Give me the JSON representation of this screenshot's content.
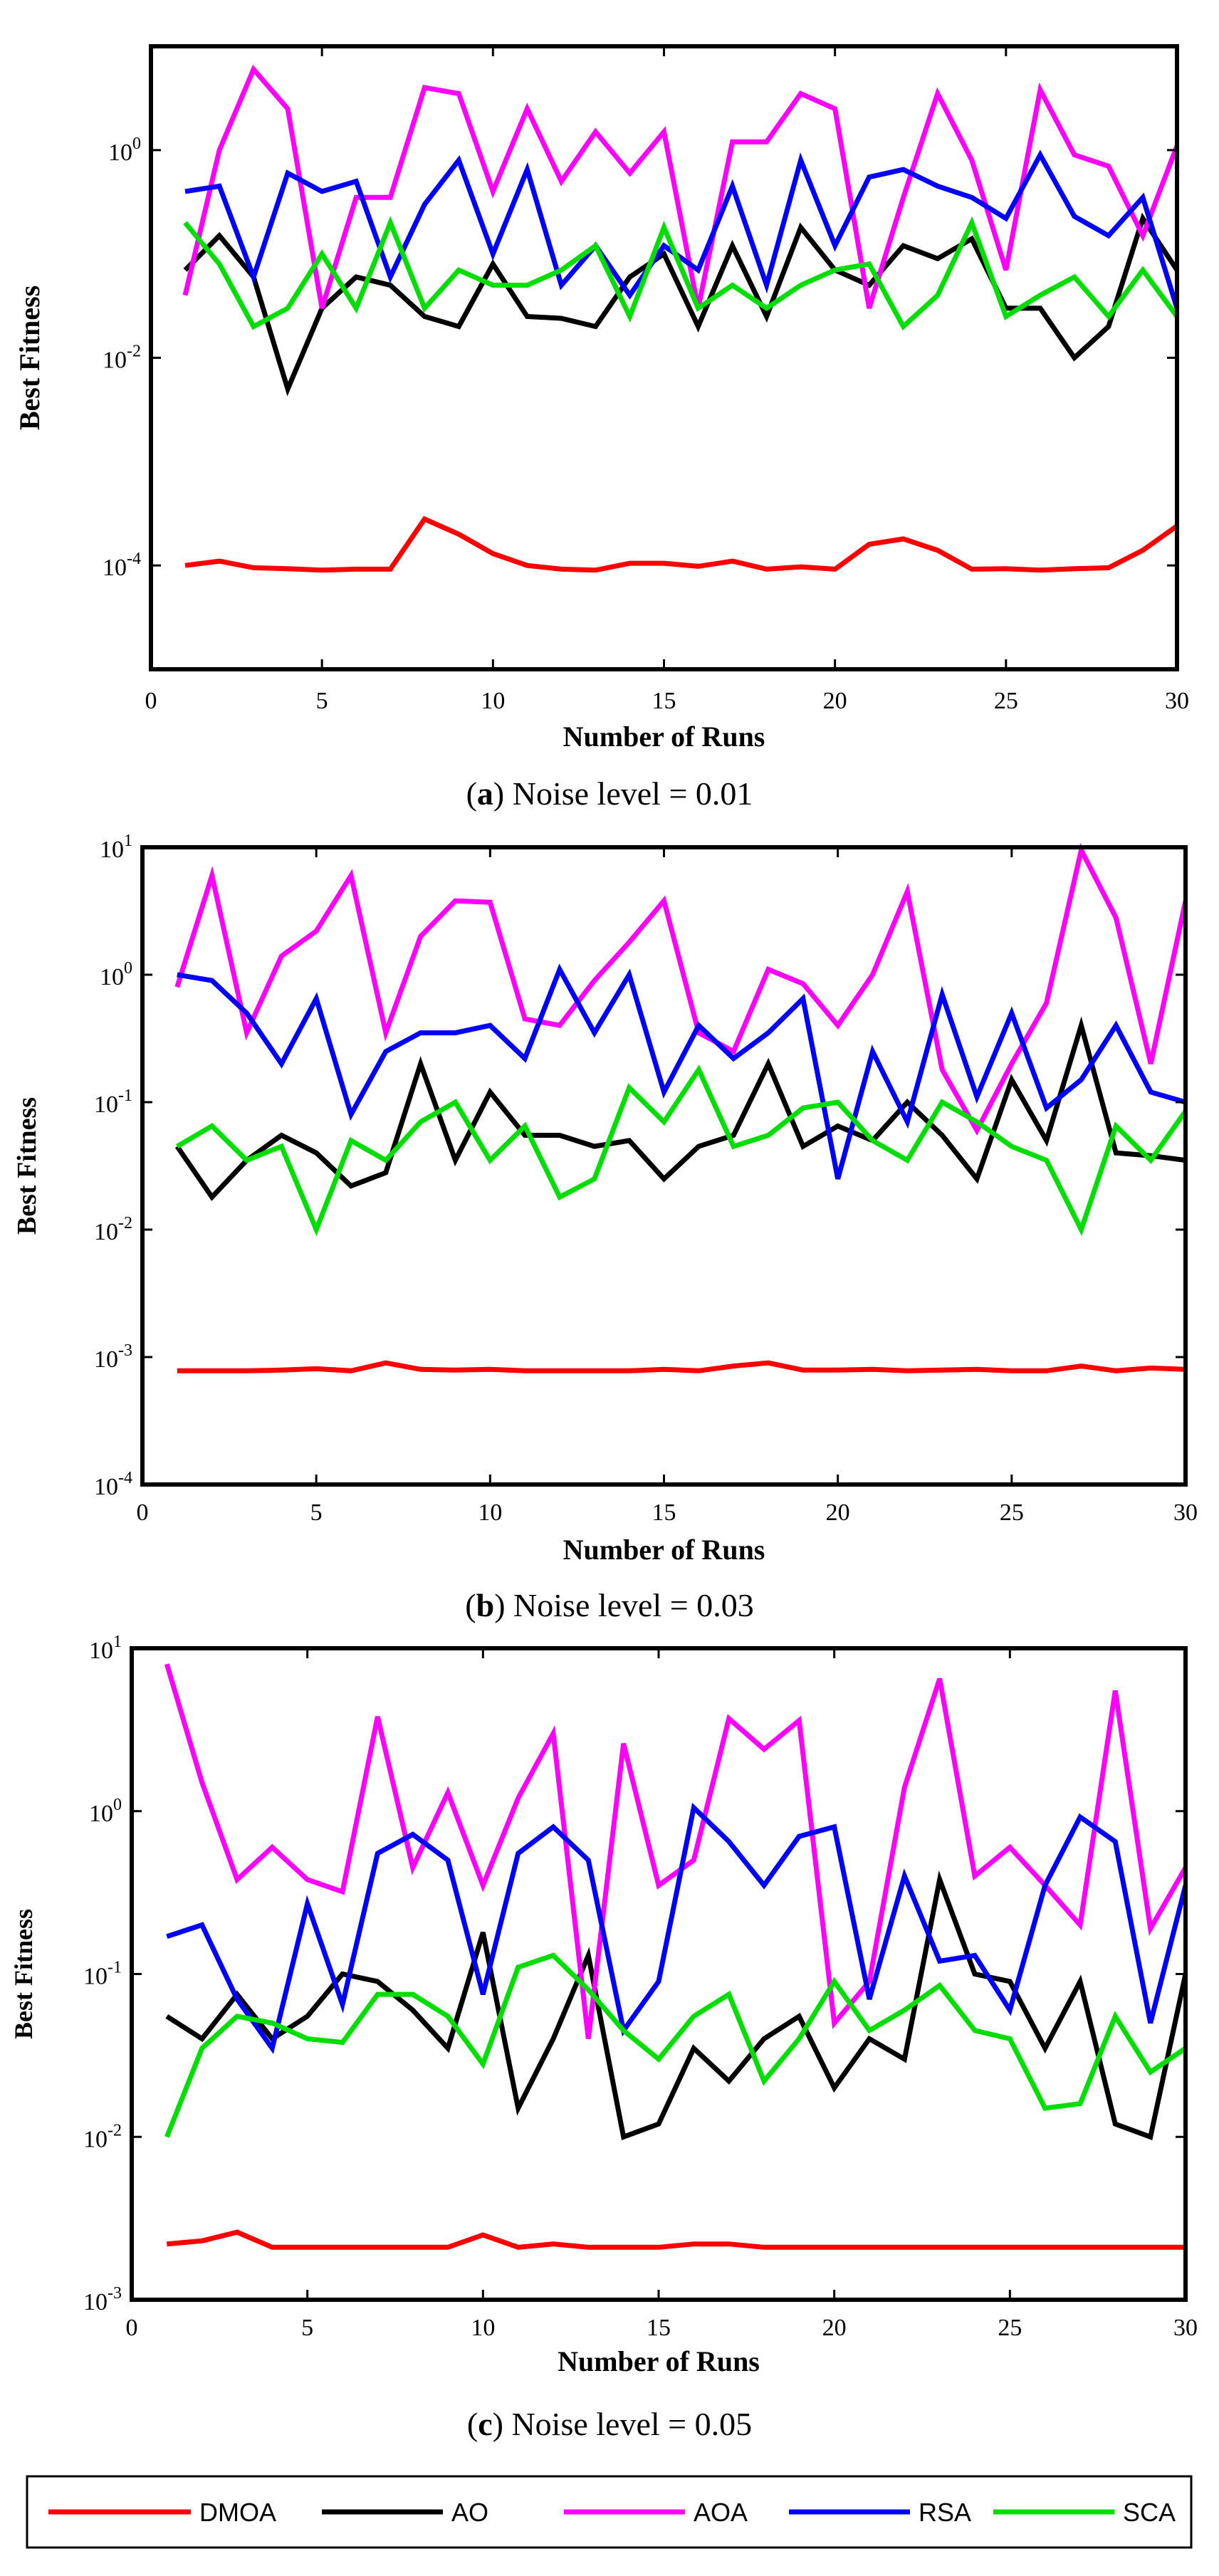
{
  "figure": {
    "legend": [
      {
        "label": "DMOA",
        "color": "#ff0000"
      },
      {
        "label": "AO",
        "color": "#000000"
      },
      {
        "label": "AOA",
        "color": "#ff00ff"
      },
      {
        "label": "RSA",
        "color": "#0000ff"
      },
      {
        "label": "SCA",
        "color": "#00dd00"
      }
    ]
  },
  "chart_data": [
    {
      "type": "line",
      "panel": "a",
      "caption": {
        "letter": "a",
        "text": "Noise level = 0.01"
      },
      "xlabel": "Number of Runs",
      "ylabel": "Best Fitness",
      "xlim": [
        0,
        30
      ],
      "ylim": [
        1e-05,
        10
      ],
      "yscale": "log",
      "x_ticks": [
        0,
        5,
        10,
        15,
        20,
        25,
        30
      ],
      "y_ticks": [
        {
          "base": "10",
          "exp": "-4",
          "value": 0.0001
        },
        {
          "base": "10",
          "exp": "-2",
          "value": 0.01
        },
        {
          "base": "10",
          "exp": "0",
          "value": 1
        }
      ],
      "x": [
        1,
        2,
        3,
        4,
        5,
        6,
        7,
        8,
        9,
        10,
        11,
        12,
        13,
        14,
        15,
        16,
        17,
        18,
        19,
        20,
        21,
        22,
        23,
        24,
        25,
        26,
        27,
        28,
        29,
        30
      ],
      "series": [
        {
          "name": "DMOA",
          "values": [
            0.0001,
            0.00011,
            9.5e-05,
            9.3e-05,
            9e-05,
            9.2e-05,
            9.2e-05,
            0.00028,
            0.0002,
            0.00013,
            0.0001,
            9.2e-05,
            9e-05,
            0.000105,
            0.000105,
            9.8e-05,
            0.00011,
            9.2e-05,
            9.7e-05,
            9.2e-05,
            0.00016,
            0.00018,
            0.00014,
            9.2e-05,
            9.3e-05,
            9e-05,
            9.3e-05,
            9.5e-05,
            0.00014,
            0.00024
          ]
        },
        {
          "name": "AO",
          "values": [
            0.07,
            0.15,
            0.06,
            0.005,
            0.03,
            0.06,
            0.05,
            0.025,
            0.02,
            0.08,
            0.025,
            0.024,
            0.02,
            0.06,
            0.1,
            0.02,
            0.12,
            0.025,
            0.18,
            0.07,
            0.05,
            0.12,
            0.09,
            0.14,
            0.03,
            0.03,
            0.01,
            0.02,
            0.22,
            0.07
          ]
        },
        {
          "name": "AOA",
          "values": [
            0.04,
            1.0,
            6.0,
            2.5,
            0.03,
            0.35,
            0.35,
            4.0,
            3.5,
            0.4,
            2.5,
            0.5,
            1.5,
            0.6,
            1.5,
            0.03,
            1.2,
            1.2,
            3.5,
            2.5,
            0.03,
            0.35,
            3.5,
            0.8,
            0.07,
            3.8,
            0.9,
            0.7,
            0.15,
            1.1
          ]
        },
        {
          "name": "RSA",
          "values": [
            0.4,
            0.45,
            0.06,
            0.6,
            0.4,
            0.5,
            0.06,
            0.3,
            0.8,
            0.1,
            0.65,
            0.05,
            0.12,
            0.04,
            0.12,
            0.07,
            0.45,
            0.05,
            0.8,
            0.12,
            0.55,
            0.65,
            0.45,
            0.35,
            0.22,
            0.9,
            0.23,
            0.15,
            0.35,
            0.03
          ]
        },
        {
          "name": "SCA",
          "values": [
            0.2,
            0.08,
            0.02,
            0.03,
            0.1,
            0.03,
            0.2,
            0.03,
            0.07,
            0.05,
            0.05,
            0.07,
            0.12,
            0.025,
            0.18,
            0.03,
            0.05,
            0.03,
            0.05,
            0.07,
            0.08,
            0.02,
            0.04,
            0.2,
            0.025,
            0.04,
            0.06,
            0.025,
            0.07,
            0.025
          ]
        }
      ]
    },
    {
      "type": "line",
      "panel": "b",
      "caption": {
        "letter": "b",
        "text": "Noise level = 0.03"
      },
      "xlabel": "Number of Runs",
      "ylabel": "Best Fitness",
      "xlim": [
        0,
        30
      ],
      "ylim": [
        0.0001,
        10
      ],
      "yscale": "log",
      "x_ticks": [
        0,
        5,
        10,
        15,
        20,
        25,
        30
      ],
      "y_ticks": [
        {
          "base": "10",
          "exp": "-4",
          "value": 0.0001
        },
        {
          "base": "10",
          "exp": "-3",
          "value": 0.001
        },
        {
          "base": "10",
          "exp": "-2",
          "value": 0.01
        },
        {
          "base": "10",
          "exp": "-1",
          "value": 0.1
        },
        {
          "base": "10",
          "exp": "0",
          "value": 1
        },
        {
          "base": "10",
          "exp": "1",
          "value": 10
        }
      ],
      "x": [
        1,
        2,
        3,
        4,
        5,
        6,
        7,
        8,
        9,
        10,
        11,
        12,
        13,
        14,
        15,
        16,
        17,
        18,
        19,
        20,
        21,
        22,
        23,
        24,
        25,
        26,
        27,
        28,
        29,
        30
      ],
      "series": [
        {
          "name": "DMOA",
          "values": [
            0.00078,
            0.00078,
            0.00078,
            0.00079,
            0.00081,
            0.00078,
            0.0009,
            0.0008,
            0.00079,
            0.0008,
            0.00078,
            0.00078,
            0.00078,
            0.00078,
            0.0008,
            0.00078,
            0.00085,
            0.0009,
            0.00079,
            0.00079,
            0.0008,
            0.00078,
            0.00079,
            0.0008,
            0.00078,
            0.00078,
            0.00085,
            0.00078,
            0.00082,
            0.0008
          ]
        },
        {
          "name": "AO",
          "values": [
            0.045,
            0.018,
            0.035,
            0.055,
            0.04,
            0.022,
            0.028,
            0.2,
            0.035,
            0.12,
            0.055,
            0.055,
            0.045,
            0.05,
            0.025,
            0.045,
            0.055,
            0.2,
            0.045,
            0.065,
            0.05,
            0.1,
            0.055,
            0.025,
            0.15,
            0.05,
            0.4,
            0.04,
            0.038,
            0.035
          ]
        },
        {
          "name": "AOA",
          "values": [
            0.8,
            6.0,
            0.35,
            1.4,
            2.2,
            6.0,
            0.35,
            2.0,
            3.8,
            3.7,
            0.45,
            0.4,
            0.9,
            1.8,
            3.8,
            0.35,
            0.25,
            1.1,
            0.85,
            0.4,
            1.0,
            4.5,
            0.18,
            0.06,
            0.2,
            0.6,
            9.5,
            2.8,
            0.2,
            3.8
          ]
        },
        {
          "name": "RSA",
          "values": [
            1.0,
            0.9,
            0.5,
            0.2,
            0.65,
            0.08,
            0.25,
            0.35,
            0.35,
            0.4,
            0.22,
            1.1,
            0.35,
            1.0,
            0.12,
            0.4,
            0.22,
            0.35,
            0.65,
            0.025,
            0.25,
            0.07,
            0.7,
            0.11,
            0.5,
            0.09,
            0.15,
            0.4,
            0.12,
            0.1
          ]
        },
        {
          "name": "SCA",
          "values": [
            0.045,
            0.065,
            0.035,
            0.045,
            0.01,
            0.05,
            0.035,
            0.07,
            0.1,
            0.035,
            0.065,
            0.018,
            0.025,
            0.13,
            0.07,
            0.18,
            0.045,
            0.055,
            0.09,
            0.1,
            0.05,
            0.035,
            0.1,
            0.07,
            0.045,
            0.035,
            0.01,
            0.065,
            0.035,
            0.085
          ]
        }
      ]
    },
    {
      "type": "line",
      "panel": "c",
      "caption": {
        "letter": "c",
        "text": "Noise level = 0.05"
      },
      "xlabel": "Number of Runs",
      "ylabel": "Best Fitness",
      "xlim": [
        0,
        30
      ],
      "ylim": [
        0.001,
        10
      ],
      "yscale": "log",
      "x_ticks": [
        0,
        5,
        10,
        15,
        20,
        25,
        30
      ],
      "y_ticks": [
        {
          "base": "10",
          "exp": "-3",
          "value": 0.001
        },
        {
          "base": "10",
          "exp": "-2",
          "value": 0.01
        },
        {
          "base": "10",
          "exp": "-1",
          "value": 0.1
        },
        {
          "base": "10",
          "exp": "0",
          "value": 1
        },
        {
          "base": "10",
          "exp": "1",
          "value": 10
        }
      ],
      "x": [
        1,
        2,
        3,
        4,
        5,
        6,
        7,
        8,
        9,
        10,
        11,
        12,
        13,
        14,
        15,
        16,
        17,
        18,
        19,
        20,
        21,
        22,
        23,
        24,
        25,
        26,
        27,
        28,
        29,
        30
      ],
      "series": [
        {
          "name": "DMOA",
          "values": [
            0.0022,
            0.0023,
            0.0026,
            0.0021,
            0.0021,
            0.0021,
            0.0021,
            0.0021,
            0.0021,
            0.0025,
            0.0021,
            0.0022,
            0.0021,
            0.0021,
            0.0021,
            0.0022,
            0.0022,
            0.0021,
            0.0021,
            0.0021,
            0.0021,
            0.0021,
            0.0021,
            0.0021,
            0.0021,
            0.0021,
            0.0021,
            0.0021,
            0.0021,
            0.0021
          ]
        },
        {
          "name": "AO",
          "values": [
            0.055,
            0.04,
            0.075,
            0.04,
            0.055,
            0.1,
            0.09,
            0.06,
            0.035,
            0.18,
            0.015,
            0.04,
            0.13,
            0.01,
            0.012,
            0.035,
            0.022,
            0.04,
            0.055,
            0.02,
            0.04,
            0.03,
            0.38,
            0.1,
            0.09,
            0.035,
            0.09,
            0.012,
            0.01,
            0.1
          ]
        },
        {
          "name": "AOA",
          "values": [
            8.0,
            1.5,
            0.38,
            0.6,
            0.38,
            0.32,
            3.8,
            0.45,
            1.3,
            0.35,
            1.2,
            3.0,
            0.04,
            2.6,
            0.35,
            0.5,
            3.7,
            2.4,
            3.6,
            0.05,
            0.09,
            1.4,
            6.5,
            0.4,
            0.6,
            0.35,
            0.2,
            5.5,
            0.19,
            0.45
          ]
        },
        {
          "name": "RSA",
          "values": [
            0.17,
            0.2,
            0.07,
            0.035,
            0.27,
            0.065,
            0.55,
            0.72,
            0.5,
            0.075,
            0.55,
            0.8,
            0.5,
            0.045,
            0.09,
            1.05,
            0.65,
            0.35,
            0.7,
            0.8,
            0.07,
            0.4,
            0.12,
            0.13,
            0.06,
            0.35,
            0.92,
            0.65,
            0.05,
            0.35
          ]
        },
        {
          "name": "SCA",
          "values": [
            0.01,
            0.035,
            0.055,
            0.05,
            0.04,
            0.038,
            0.075,
            0.075,
            0.055,
            0.028,
            0.11,
            0.13,
            0.08,
            0.045,
            0.03,
            0.055,
            0.075,
            0.022,
            0.04,
            0.09,
            0.045,
            0.06,
            0.085,
            0.045,
            0.04,
            0.015,
            0.016,
            0.055,
            0.025,
            0.035
          ]
        }
      ]
    }
  ]
}
